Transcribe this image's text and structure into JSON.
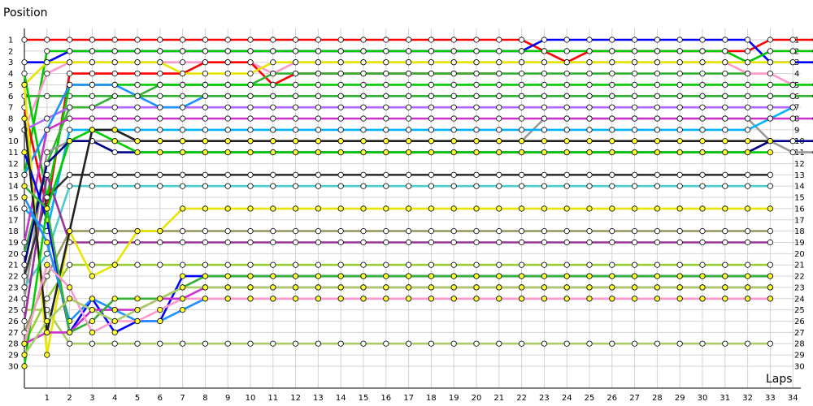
{
  "chart_data": {
    "type": "line",
    "title": "",
    "ylabel": "Position",
    "xlabel": "Laps",
    "x": [
      0,
      1,
      2,
      3,
      4,
      5,
      6,
      7,
      8,
      9,
      10,
      11,
      12,
      13,
      14,
      15,
      16,
      17,
      18,
      19,
      20,
      21,
      22,
      23,
      24,
      25,
      26,
      27,
      28,
      29,
      30,
      31,
      32,
      33,
      34,
      35
    ],
    "x_tick_labels": [
      "1",
      "2",
      "3",
      "4",
      "5",
      "6",
      "7",
      "8",
      "9",
      "10",
      "11",
      "12",
      "13",
      "14",
      "15",
      "16",
      "17",
      "18",
      "19",
      "20",
      "21",
      "22",
      "23",
      "24",
      "25",
      "26",
      "27",
      "28",
      "29",
      "30",
      "31",
      "32",
      "33",
      "34"
    ],
    "y_tick_labels": [
      "1",
      "2",
      "3",
      "4",
      "5",
      "6",
      "7",
      "8",
      "9",
      "10",
      "11",
      "12",
      "13",
      "14",
      "15",
      "16",
      "17",
      "18",
      "19",
      "20",
      "21",
      "22",
      "23",
      "24",
      "25",
      "26",
      "27",
      "28",
      "29",
      "30"
    ],
    "ylim": [
      30,
      1
    ],
    "grid": true,
    "legend": "none",
    "series": [
      {
        "color": "#ff0000",
        "marker": "#ffffff",
        "values": [
          1,
          1,
          1,
          1,
          1,
          1,
          1,
          1,
          1,
          1,
          1,
          1,
          1,
          1,
          1,
          1,
          1,
          1,
          1,
          1,
          1,
          1,
          1,
          2,
          3,
          2,
          2,
          2,
          2,
          2,
          2,
          2,
          2,
          1,
          1,
          1
        ]
      },
      {
        "color": "#0000ff",
        "marker": "#ffffff",
        "values": [
          3,
          3,
          2,
          2,
          2,
          2,
          2,
          2,
          2,
          2,
          2,
          2,
          2,
          2,
          2,
          2,
          2,
          2,
          2,
          2,
          2,
          2,
          2,
          1,
          1,
          1,
          1,
          1,
          1,
          1,
          1,
          1,
          1,
          3,
          3,
          3
        ]
      },
      {
        "color": "#00c800",
        "marker": "#ffffff",
        "values": [
          13,
          2,
          2,
          2,
          2,
          2,
          2,
          2,
          2,
          2,
          2,
          2,
          2,
          2,
          2,
          2,
          2,
          2,
          2,
          2,
          2,
          2,
          2,
          2,
          2,
          2,
          2,
          2,
          2,
          2,
          2,
          2,
          3,
          2,
          2,
          2
        ]
      },
      {
        "color": "#ff99cc",
        "marker": "#ffffff",
        "values": [
          9,
          4,
          3,
          3,
          3,
          3,
          3,
          3,
          3,
          3,
          3,
          4,
          3,
          3,
          3,
          3,
          3,
          3,
          3,
          3,
          3,
          3,
          3,
          3,
          3,
          3,
          3,
          3,
          3,
          3,
          3,
          3,
          4,
          4,
          5,
          null
        ]
      },
      {
        "color": "#ff0000",
        "marker": "#ffffff",
        "values": [
          7,
          16,
          4,
          4,
          4,
          4,
          4,
          4,
          3,
          3,
          3,
          5,
          4,
          4,
          4,
          4,
          4,
          4,
          4,
          4,
          4,
          4,
          null,
          null,
          null,
          null,
          null,
          null,
          null,
          null,
          null,
          null,
          null,
          null,
          null,
          null
        ]
      },
      {
        "color": "#33b233",
        "marker": "#ffffff",
        "values": [
          6,
          6,
          6,
          6,
          6,
          6,
          5,
          5,
          5,
          5,
          5,
          4,
          4,
          4,
          4,
          4,
          4,
          4,
          4,
          4,
          4,
          4,
          4,
          4,
          4,
          4,
          4,
          4,
          4,
          4,
          4,
          4,
          4,
          null,
          null,
          null
        ]
      },
      {
        "color": "#e6e600",
        "marker": "#ffffff",
        "values": [
          5,
          3,
          3,
          3,
          3,
          3,
          3,
          4,
          4,
          4,
          4,
          3,
          3,
          3,
          3,
          3,
          3,
          3,
          3,
          3,
          3,
          3,
          3,
          3,
          3,
          3,
          3,
          3,
          3,
          3,
          3,
          3,
          3,
          3,
          3,
          null
        ]
      },
      {
        "color": "#00cc00",
        "marker": "#ffffff",
        "values": [
          4,
          15,
          5,
          5,
          5,
          5,
          5,
          5,
          5,
          5,
          5,
          5,
          5,
          5,
          5,
          5,
          5,
          5,
          5,
          5,
          5,
          5,
          5,
          5,
          5,
          5,
          5,
          5,
          5,
          5,
          5,
          5,
          5,
          5,
          5,
          5
        ]
      },
      {
        "color": "#b366ff",
        "marker": "#ffffff",
        "values": [
          9,
          8,
          7,
          7,
          7,
          7,
          7,
          7,
          7,
          7,
          7,
          7,
          7,
          7,
          7,
          7,
          7,
          7,
          7,
          7,
          7,
          7,
          7,
          7,
          7,
          7,
          7,
          7,
          7,
          7,
          7,
          7,
          7,
          7,
          7,
          null
        ]
      },
      {
        "color": "#1e90ff",
        "marker": "#ffffff",
        "values": [
          13,
          9,
          5,
          5,
          5,
          6,
          7,
          7,
          6,
          6,
          6,
          6,
          6,
          6,
          6,
          6,
          6,
          6,
          6,
          6,
          6,
          6,
          6,
          6,
          6,
          6,
          6,
          6,
          6,
          6,
          6,
          6,
          6,
          6,
          6,
          null
        ]
      },
      {
        "color": "#33b233",
        "marker": "#ffffff",
        "values": [
          20,
          12,
          7,
          7,
          6,
          6,
          6,
          6,
          6,
          6,
          6,
          6,
          6,
          6,
          6,
          6,
          6,
          6,
          6,
          6,
          6,
          6,
          6,
          6,
          6,
          6,
          6,
          6,
          6,
          6,
          6,
          6,
          6,
          6,
          6,
          6
        ]
      },
      {
        "color": "#999999",
        "marker": "#ffffff",
        "values": [
          24,
          11,
          10,
          10,
          10,
          10,
          10,
          10,
          10,
          10,
          10,
          10,
          10,
          10,
          10,
          10,
          10,
          10,
          10,
          10,
          10,
          10,
          10,
          8,
          8,
          8,
          8,
          8,
          8,
          8,
          8,
          8,
          8,
          10,
          11,
          11
        ]
      },
      {
        "color": "#00b2ff",
        "marker": "#ffffff",
        "values": [
          16,
          18,
          9,
          9,
          9,
          9,
          9,
          9,
          9,
          9,
          9,
          9,
          9,
          9,
          9,
          9,
          9,
          9,
          9,
          9,
          9,
          9,
          9,
          9,
          9,
          9,
          9,
          9,
          9,
          9,
          9,
          9,
          9,
          8,
          7,
          null
        ]
      },
      {
        "color": "#cc33cc",
        "marker": "#ffffff",
        "values": [
          19,
          9,
          8,
          8,
          8,
          8,
          8,
          8,
          8,
          8,
          8,
          8,
          8,
          8,
          8,
          8,
          8,
          8,
          8,
          8,
          8,
          8,
          8,
          8,
          8,
          8,
          8,
          8,
          8,
          8,
          8,
          8,
          8,
          8,
          8,
          8
        ]
      },
      {
        "color": "#00008b",
        "marker": "#ffffff",
        "values": [
          21,
          12,
          10,
          10,
          11,
          11,
          11,
          11,
          11,
          11,
          11,
          11,
          11,
          11,
          11,
          11,
          11,
          11,
          11,
          11,
          11,
          11,
          11,
          11,
          11,
          11,
          11,
          11,
          11,
          11,
          11,
          11,
          11,
          10,
          10,
          10
        ]
      },
      {
        "color": "#333333",
        "marker": "#ffffff",
        "values": [
          22,
          15,
          13,
          13,
          13,
          13,
          13,
          13,
          13,
          13,
          13,
          13,
          13,
          13,
          13,
          13,
          13,
          13,
          13,
          13,
          13,
          13,
          13,
          13,
          13,
          13,
          13,
          13,
          13,
          13,
          13,
          13,
          13,
          13,
          null,
          null
        ]
      },
      {
        "color": "#4dcccc",
        "marker": "#ffffff",
        "values": [
          23,
          20,
          14,
          14,
          14,
          14,
          14,
          14,
          14,
          14,
          14,
          14,
          14,
          14,
          14,
          14,
          14,
          14,
          14,
          14,
          14,
          14,
          14,
          14,
          14,
          14,
          14,
          14,
          14,
          14,
          14,
          14,
          14,
          14,
          null,
          null
        ]
      },
      {
        "color": "#aacc66",
        "marker": "#ffffff",
        "values": [
          25,
          25,
          28,
          28,
          28,
          28,
          28,
          28,
          28,
          28,
          28,
          28,
          28,
          28,
          28,
          28,
          28,
          28,
          28,
          28,
          28,
          28,
          28,
          28,
          28,
          28,
          28,
          28,
          28,
          28,
          28,
          28,
          28,
          28,
          null,
          null
        ]
      },
      {
        "color": "#993399",
        "marker": "#ffffff",
        "values": [
          26,
          13,
          19,
          19,
          19,
          19,
          19,
          19,
          19,
          19,
          19,
          19,
          19,
          19,
          19,
          19,
          19,
          19,
          19,
          19,
          19,
          19,
          19,
          19,
          19,
          19,
          19,
          19,
          19,
          19,
          19,
          19,
          19,
          19,
          null,
          null
        ]
      },
      {
        "color": "#999966",
        "marker": "#ffffff",
        "values": [
          27,
          22,
          18,
          18,
          18,
          18,
          18,
          18,
          18,
          18,
          18,
          18,
          18,
          18,
          18,
          18,
          18,
          18,
          18,
          18,
          18,
          18,
          18,
          18,
          18,
          18,
          18,
          18,
          18,
          18,
          18,
          18,
          18,
          18,
          null,
          null
        ]
      },
      {
        "color": "#99cc33",
        "marker": "#ffffff",
        "values": [
          28,
          24,
          21,
          21,
          21,
          21,
          21,
          21,
          21,
          21,
          21,
          21,
          21,
          21,
          21,
          21,
          21,
          21,
          21,
          21,
          21,
          21,
          21,
          21,
          21,
          21,
          21,
          21,
          21,
          21,
          21,
          21,
          21,
          21,
          null,
          null
        ]
      },
      {
        "color": "#e6e600",
        "marker": "#ffff33",
        "values": [
          5,
          29,
          18,
          22,
          21,
          18,
          18,
          16,
          16,
          16,
          16,
          16,
          16,
          16,
          16,
          16,
          16,
          16,
          16,
          16,
          16,
          16,
          16,
          16,
          16,
          16,
          16,
          16,
          16,
          16,
          16,
          16,
          16,
          16,
          null,
          null
        ]
      },
      {
        "color": "#0000ff",
        "marker": "#ffff33",
        "values": [
          11,
          17,
          27,
          24,
          27,
          26,
          26,
          22,
          22,
          22,
          22,
          22,
          22,
          22,
          22,
          22,
          22,
          22,
          22,
          22,
          22,
          22,
          22,
          22,
          22,
          22,
          22,
          22,
          22,
          22,
          22,
          22,
          22,
          22,
          null,
          null
        ]
      },
      {
        "color": "#222222",
        "marker": "#ffff33",
        "values": [
          8,
          27,
          18,
          9,
          9,
          10,
          10,
          10,
          10,
          10,
          10,
          10,
          10,
          10,
          10,
          10,
          10,
          10,
          10,
          10,
          10,
          10,
          10,
          10,
          10,
          10,
          10,
          10,
          10,
          10,
          10,
          10,
          10,
          10,
          null,
          null
        ]
      },
      {
        "color": "#00cc00",
        "marker": "#ffff33",
        "values": [
          30,
          16,
          10,
          9,
          10,
          11,
          11,
          11,
          11,
          11,
          11,
          11,
          11,
          11,
          11,
          11,
          11,
          11,
          11,
          11,
          11,
          11,
          11,
          11,
          11,
          11,
          11,
          11,
          11,
          11,
          11,
          11,
          11,
          11,
          null,
          null
        ]
      },
      {
        "color": "#cc33cc",
        "marker": "#ffff33",
        "values": [
          28,
          27,
          27,
          25,
          25,
          25,
          24,
          24,
          23,
          23,
          23,
          23,
          23,
          23,
          23,
          23,
          23,
          23,
          23,
          23,
          23,
          23,
          23,
          23,
          23,
          23,
          23,
          23,
          23,
          23,
          23,
          23,
          23,
          23,
          null,
          null
        ]
      },
      {
        "color": "#1e90ff",
        "marker": "#ffff33",
        "values": [
          15,
          19,
          26,
          24,
          25,
          26,
          26,
          25,
          24,
          24,
          24,
          24,
          24,
          24,
          24,
          24,
          24,
          24,
          24,
          24,
          24,
          24,
          24,
          24,
          24,
          24,
          24,
          24,
          24,
          24,
          24,
          24,
          24,
          24,
          null,
          null
        ]
      },
      {
        "color": "#33b233",
        "marker": "#ffff33",
        "values": [
          14,
          16,
          27,
          26,
          24,
          24,
          24,
          23,
          22,
          22,
          22,
          22,
          22,
          22,
          22,
          22,
          22,
          22,
          22,
          22,
          22,
          22,
          22,
          22,
          22,
          22,
          22,
          22,
          22,
          22,
          22,
          22,
          22,
          22,
          null,
          null
        ]
      },
      {
        "color": "#ff99cc",
        "marker": "#ffff33",
        "values": [
          28,
          21,
          23,
          27,
          26,
          26,
          25,
          24,
          24,
          24,
          24,
          24,
          24,
          24,
          24,
          24,
          24,
          24,
          24,
          24,
          24,
          24,
          24,
          24,
          24,
          24,
          24,
          24,
          24,
          24,
          24,
          24,
          24,
          24,
          null,
          null
        ]
      },
      {
        "color": "#aacc66",
        "marker": "#ffff33",
        "values": [
          29,
          26,
          24,
          25,
          26,
          25,
          24,
          23,
          23,
          23,
          23,
          23,
          23,
          23,
          23,
          23,
          23,
          23,
          23,
          23,
          23,
          23,
          23,
          23,
          23,
          23,
          23,
          23,
          23,
          23,
          23,
          23,
          23,
          23,
          null,
          null
        ]
      }
    ]
  }
}
